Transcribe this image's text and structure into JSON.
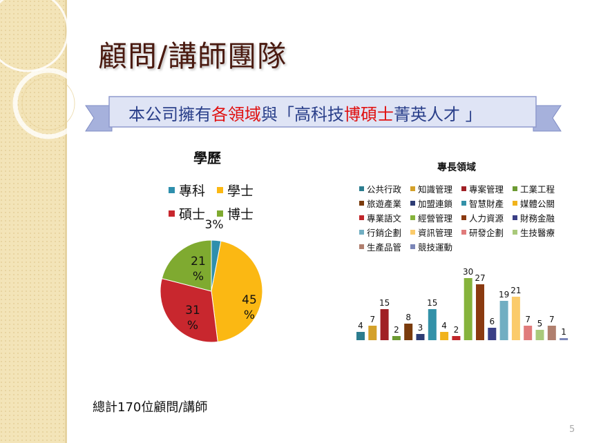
{
  "slide": {
    "title": "顧問/講師團隊",
    "banner": {
      "parts": [
        {
          "text": "本公司擁有",
          "color": "#2a3f8a"
        },
        {
          "text": "各領域",
          "color": "#e01010"
        },
        {
          "text": "與「高科技",
          "color": "#2a3f8a"
        },
        {
          "text": "博碩士",
          "color": "#e01010"
        },
        {
          "text": "菁英人才 」",
          "color": "#2a3f8a"
        }
      ]
    },
    "footer_total": "總計170位顧問/講師",
    "page_number": "5"
  },
  "chart_data": [
    {
      "type": "pie",
      "title": "學歷",
      "categories": [
        "專科",
        "學士",
        "碩士",
        "博士"
      ],
      "values": [
        3,
        45,
        31,
        21
      ],
      "labels": [
        "3%",
        "45\n%",
        "31\n%",
        "21\n%"
      ],
      "colors": [
        "#2e8fad",
        "#fbb813",
        "#c8272e",
        "#7faa30"
      ],
      "legend_position": "top"
    },
    {
      "type": "bar",
      "title": "專長領域",
      "categories": [
        "公共行政",
        "知識管理",
        "專案管理",
        "工業工程",
        "旅遊產業",
        "加盟連鎖",
        "智慧財產",
        "媒體公關",
        "專業語文",
        "經營管理",
        "人力資源",
        "財務金融",
        "行銷企劃",
        "資訊管理",
        "研發企劃",
        "生技醫療",
        "生產品管",
        "競技運動"
      ],
      "values": [
        4,
        7,
        15,
        2,
        8,
        3,
        15,
        4,
        2,
        30,
        27,
        6,
        19,
        21,
        7,
        5,
        7,
        1
      ],
      "colors": [
        "#2c7d8f",
        "#d4a12a",
        "#a02025",
        "#6c9a32",
        "#7a3b0c",
        "#2d3c74",
        "#3391a8",
        "#f1b31c",
        "#c0262a",
        "#86b33c",
        "#8a3a10",
        "#3a3f86",
        "#71aec2",
        "#fbcb6b",
        "#e07b7b",
        "#a9c97a",
        "#b07f6e",
        "#7b86b8"
      ],
      "legend_position": "top",
      "grid": false
    }
  ]
}
